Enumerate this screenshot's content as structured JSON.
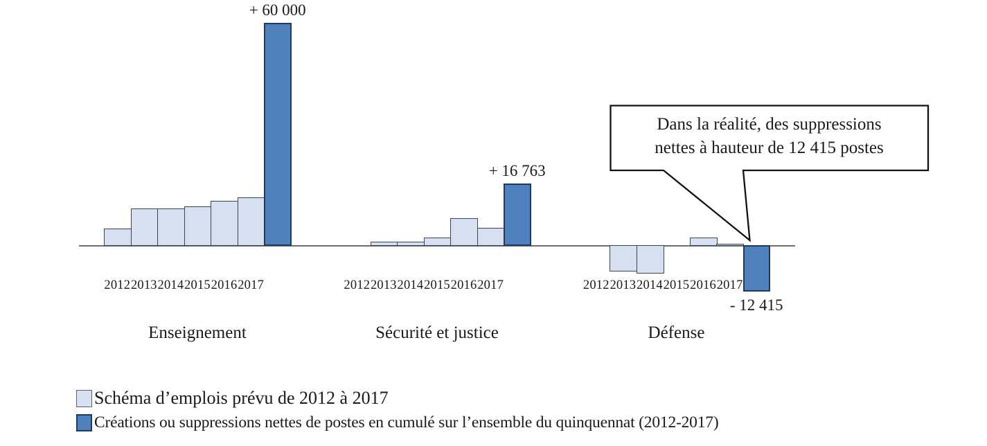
{
  "chart_data": {
    "type": "bar",
    "title": "",
    "unit": "postes",
    "baseline_value": 0,
    "axis": {
      "y_shown": false,
      "x_baseline_color": "#6e6e6e",
      "grid": false
    },
    "series_meta": [
      {
        "name": "Schéma d’emplois prévu de 2012 à 2017",
        "color": "#d6e0f0",
        "role": "planned-yearly"
      },
      {
        "name": "Créations ou suppressions nettes de postes en cumulé sur l’ensemble du quinquennat (2012-2017)",
        "color": "#4f81bd",
        "role": "cumulative"
      }
    ],
    "groups": [
      {
        "name": "Enseignement",
        "years": [
          "2012",
          "2013",
          "2014",
          "2015",
          "2016",
          "2017"
        ],
        "planned_by_year": [
          4600,
          10000,
          10000,
          10600,
          12100,
          13000
        ],
        "cumulative": 60000,
        "cumulative_label": "+ 60 000"
      },
      {
        "name": "Sécurité et justice",
        "years": [
          "2012",
          "2013",
          "2014",
          "2015",
          "2016",
          "2017"
        ],
        "planned_by_year": [
          0,
          1100,
          1100,
          2250,
          7450,
          4850
        ],
        "cumulative": 16763,
        "cumulative_label": "+ 16 763"
      },
      {
        "name": "Défense",
        "years": [
          "2012",
          "2013",
          "2014",
          "2015",
          "2016",
          "2017"
        ],
        "planned_by_year": [
          0,
          -7100,
          -7650,
          0,
          2250,
          550
        ],
        "cumulative": -12415,
        "cumulative_label": "- 12 415"
      }
    ],
    "annotation": {
      "line1": "Dans la réalité, des suppressions",
      "line2": "nettes à hauteur de 12 415 postes",
      "points_to_group": "Défense"
    },
    "legend": [
      {
        "label": "Schéma d’emplois prévu de 2012 à 2017",
        "color": "#d6e0f0"
      },
      {
        "label": "Créations ou suppressions nettes de postes en cumulé sur l’ensemble du quinquennat (2012-2017)",
        "color": "#4f81bd"
      }
    ],
    "colors": {
      "planned_fill": "#d6e0f0",
      "planned_border": "#3a4454",
      "cumulative_fill": "#4f81bd",
      "cumulative_border": "#1f3864",
      "axis": "#6e6e6e",
      "text": "#1a1a1a",
      "callout_border": "#111111",
      "callout_fill": "#ffffff"
    }
  }
}
